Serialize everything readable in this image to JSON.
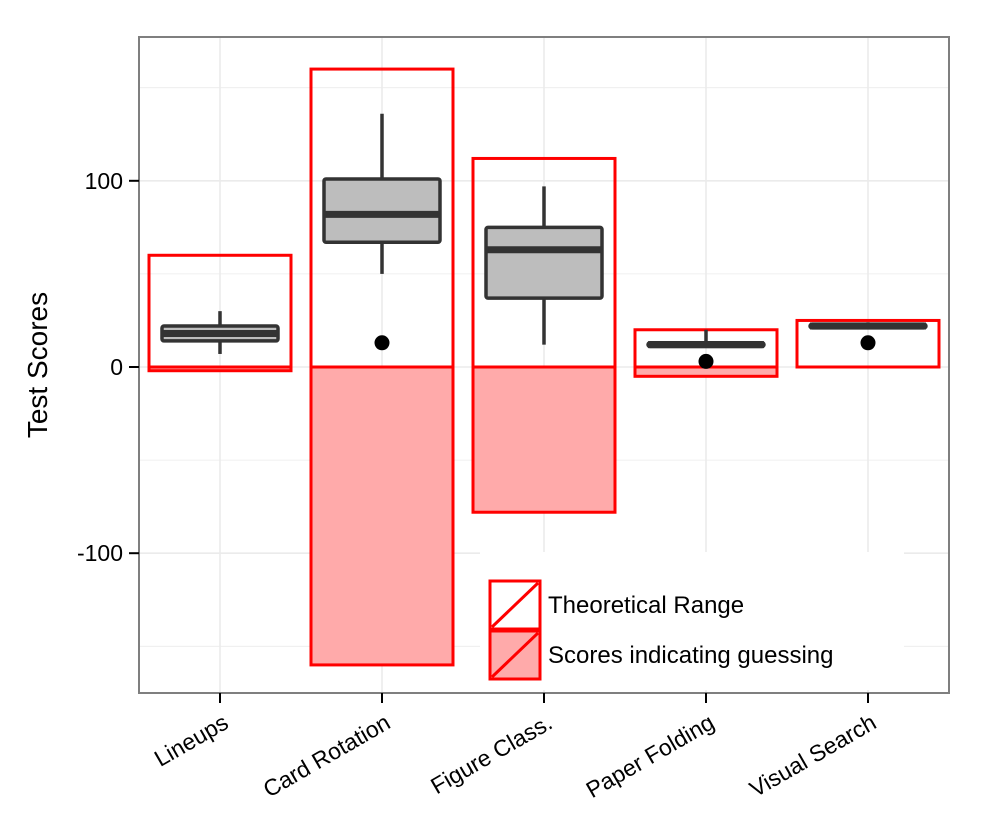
{
  "chart_data": {
    "type": "box",
    "title": "",
    "xlabel": "",
    "ylabel": "Test Scores",
    "ylim": [
      -176,
      176
    ],
    "yticks": [
      -100,
      0,
      100
    ],
    "ytick_labels": [
      "-100",
      "0",
      "100"
    ],
    "grid": true,
    "legend_position": "bottom-right",
    "categories": [
      {
        "label": "Lineups",
        "theoretical_range": [
          -2,
          60
        ],
        "guessing_range": [
          -2,
          0
        ],
        "box": {
          "whisker_low": 7,
          "q1": 14,
          "median": 18,
          "q3": 22,
          "whisker_high": 30
        },
        "chance_point": null
      },
      {
        "label": "Card Rotation",
        "theoretical_range": [
          -160,
          160
        ],
        "guessing_range": [
          -160,
          0
        ],
        "box": {
          "whisker_low": 50,
          "q1": 67,
          "median": 82,
          "q3": 101,
          "whisker_high": 136
        },
        "chance_point": 13
      },
      {
        "label": "Figure Class.",
        "theoretical_range": [
          -78,
          112
        ],
        "guessing_range": [
          -78,
          0
        ],
        "box": {
          "whisker_low": 12,
          "q1": 37,
          "median": 63,
          "q3": 75,
          "whisker_high": 97
        },
        "chance_point": null
      },
      {
        "label": "Paper Folding",
        "theoretical_range": [
          -5,
          20
        ],
        "guessing_range": [
          -5,
          0
        ],
        "box": {
          "whisker_low": 11,
          "q1": 11,
          "median": 12,
          "q3": 13,
          "whisker_high": 20
        },
        "chance_point": 3
      },
      {
        "label": "Visual Search",
        "theoretical_range": [
          0,
          25
        ],
        "guessing_range": [
          0,
          0
        ],
        "box": {
          "whisker_low": 21,
          "q1": 21,
          "median": 22,
          "q3": 23,
          "whisker_high": 24
        },
        "chance_point": 13
      }
    ],
    "legend": [
      {
        "label": "Theoretical Range",
        "fill": "#ffffff",
        "stroke": "#ff0000"
      },
      {
        "label": "Scores indicating guessing",
        "fill": "#ffaaaa",
        "stroke": "#ff0000"
      }
    ],
    "colors": {
      "range_stroke": "#ff0000",
      "guess_fill": "#ffaaaa",
      "box_fill": "#bdbdbd",
      "box_stroke": "#333333",
      "point": "#000000",
      "grid": "#ebebeb",
      "panel_border": "#7f7f7f"
    }
  }
}
